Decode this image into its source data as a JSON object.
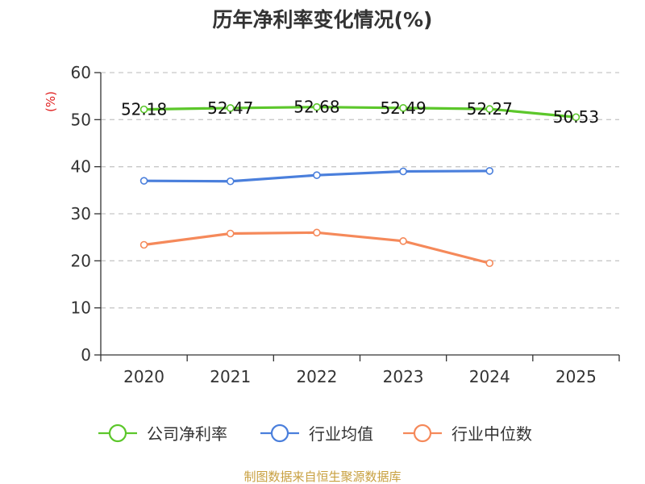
{
  "chart_data": {
    "type": "line",
    "title": "历年净利率变化情况(%)",
    "ylabel": "(%)",
    "xlabel": "",
    "categories": [
      "2020",
      "2021",
      "2022",
      "2023",
      "2024",
      "2025"
    ],
    "ylim": [
      0,
      60
    ],
    "yticks": [
      0,
      10,
      20,
      30,
      40,
      50,
      60
    ],
    "grid": true,
    "legend_position": "bottom",
    "series": [
      {
        "name": "公司净利率",
        "color": "#5cc72b",
        "values": [
          52.18,
          52.47,
          52.68,
          52.49,
          52.27,
          50.53
        ],
        "labels": [
          "52.18",
          "52.47",
          "52.68",
          "52.49",
          "52.27",
          "50.53"
        ],
        "show_labels": true
      },
      {
        "name": "行业均值",
        "color": "#4a7fdc",
        "values": [
          37.0,
          36.9,
          38.2,
          39.0,
          39.1,
          null
        ],
        "show_labels": false
      },
      {
        "name": "行业中位数",
        "color": "#f5895a",
        "values": [
          23.4,
          25.8,
          26.0,
          24.2,
          19.5,
          null
        ],
        "show_labels": false
      }
    ],
    "unit_color": "#e02020"
  },
  "source": {
    "text": "制图数据来自恒生聚源数据库",
    "color": "#c8a040"
  }
}
